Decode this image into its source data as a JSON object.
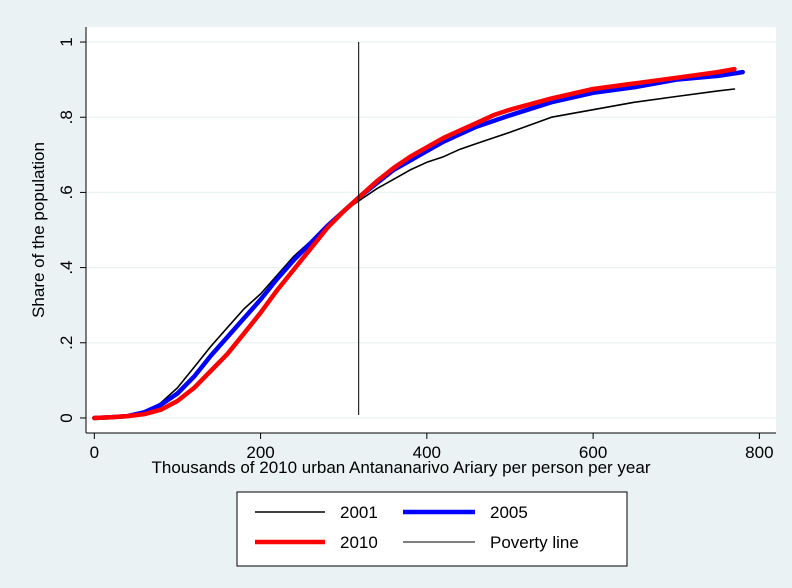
{
  "chart_data": {
    "type": "line",
    "title": "",
    "xlabel": "Thousands of 2010 urban Antananarivo Ariary per person per year",
    "ylabel": "Share of the population",
    "xlim": [
      -10,
      820
    ],
    "ylim": [
      -0.04,
      1.04
    ],
    "xticks": [
      0,
      200,
      400,
      600,
      800
    ],
    "xtick_labels": [
      "0",
      "200",
      "400",
      "600",
      "800"
    ],
    "yticks": [
      0,
      0.2,
      0.4,
      0.6,
      0.8,
      1
    ],
    "ytick_labels": [
      "0",
      ".2",
      ".4",
      ".6",
      ".8",
      "1"
    ],
    "grid": true,
    "legend_position": "bottom",
    "series": [
      {
        "name": "2001",
        "color": "#000000",
        "width": 1.6,
        "x": [
          20,
          40,
          60,
          80,
          100,
          120,
          140,
          160,
          180,
          200,
          220,
          240,
          260,
          280,
          300,
          320,
          340,
          360,
          380,
          400,
          420,
          440,
          460,
          480,
          500,
          550,
          600,
          650,
          700,
          750,
          770
        ],
        "y": [
          0,
          0.005,
          0.015,
          0.04,
          0.08,
          0.135,
          0.19,
          0.24,
          0.29,
          0.33,
          0.38,
          0.43,
          0.47,
          0.51,
          0.55,
          0.58,
          0.61,
          0.635,
          0.66,
          0.68,
          0.695,
          0.715,
          0.73,
          0.745,
          0.76,
          0.8,
          0.82,
          0.84,
          0.855,
          0.87,
          0.875
        ]
      },
      {
        "name": "2005",
        "color": "#0000ff",
        "width": 4.5,
        "x": [
          0,
          20,
          40,
          60,
          80,
          100,
          120,
          140,
          160,
          180,
          200,
          220,
          240,
          260,
          280,
          300,
          320,
          340,
          360,
          380,
          400,
          420,
          440,
          460,
          480,
          500,
          550,
          600,
          650,
          700,
          750,
          780
        ],
        "y": [
          0,
          0.002,
          0.005,
          0.015,
          0.035,
          0.065,
          0.11,
          0.165,
          0.215,
          0.265,
          0.315,
          0.37,
          0.42,
          0.465,
          0.51,
          0.55,
          0.59,
          0.625,
          0.66,
          0.685,
          0.71,
          0.735,
          0.755,
          0.775,
          0.79,
          0.805,
          0.84,
          0.865,
          0.88,
          0.9,
          0.91,
          0.92
        ]
      },
      {
        "name": "2010",
        "color": "#ff0000",
        "width": 4.5,
        "x": [
          0,
          20,
          40,
          60,
          80,
          100,
          120,
          140,
          160,
          180,
          200,
          220,
          240,
          260,
          280,
          300,
          320,
          340,
          360,
          380,
          400,
          420,
          440,
          460,
          480,
          500,
          550,
          600,
          650,
          700,
          750,
          770
        ],
        "y": [
          0,
          0.002,
          0.005,
          0.01,
          0.022,
          0.045,
          0.08,
          0.125,
          0.17,
          0.225,
          0.28,
          0.34,
          0.395,
          0.45,
          0.505,
          0.55,
          0.59,
          0.63,
          0.665,
          0.695,
          0.72,
          0.745,
          0.765,
          0.785,
          0.805,
          0.82,
          0.85,
          0.875,
          0.89,
          0.905,
          0.92,
          0.928
        ]
      }
    ],
    "vertical_lines": [
      {
        "name": "Poverty line",
        "x": 318,
        "color": "#000000",
        "width": 1
      }
    ],
    "legend": [
      {
        "label": "2001",
        "color": "#000000",
        "width": 1.6
      },
      {
        "label": "2005",
        "color": "#0000ff",
        "width": 4.5
      },
      {
        "label": "2010",
        "color": "#ff0000",
        "width": 4.5
      },
      {
        "label": "Poverty line",
        "color": "#000000",
        "width": 1
      }
    ]
  }
}
